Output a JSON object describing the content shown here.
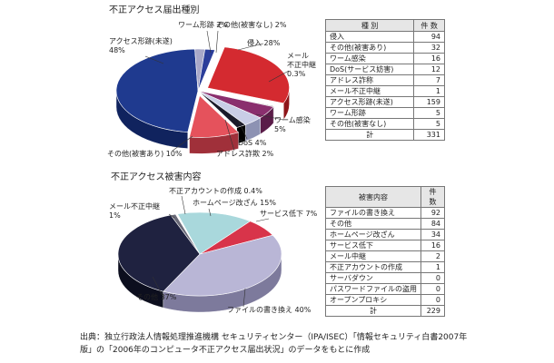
{
  "chart_data": [
    {
      "type": "pie",
      "title": "不正アクセス届出種別",
      "slices": [
        {
          "label": "侵入",
          "display": "侵入 28%",
          "value": 28,
          "color": "#d42a30",
          "side": "#8e1418"
        },
        {
          "label": "メール不正中継",
          "display": "メール|不正中継|0.3%",
          "value": 0.3,
          "color": "#7a7a7a",
          "side": "#444444"
        },
        {
          "label": "ワーム感染",
          "display": "ワーム感染|5%",
          "value": 5,
          "color": "#8a2f6e",
          "side": "#5a1c48"
        },
        {
          "label": "DoS",
          "display": "DoS 4%",
          "value": 4,
          "color": "#c9cde6",
          "side": "#8d92b3"
        },
        {
          "label": "アドレス詐欺",
          "display": "アドレス詐欺 2%",
          "value": 2,
          "color": "#1a1a2a",
          "side": "#000000"
        },
        {
          "label": "その他(被害あり)",
          "display": "その他(被害あり) 10%",
          "value": 10,
          "color": "#e5525c",
          "side": "#a0303a"
        },
        {
          "label": "アクセス形跡(未遂)",
          "display": "アクセス形跡(未遂)|48%",
          "value": 48,
          "color": "#1f3a8f",
          "side": "#10235e"
        },
        {
          "label": "ワーム形跡",
          "display": "ワーム形跡 2%",
          "value": 2,
          "color": "#a8a8c8",
          "side": "#70708f"
        },
        {
          "label": "その他(被害なし)",
          "display": "その他(被害なし) 2%",
          "value": 2,
          "color": "#2b3e9a",
          "side": "#192866"
        }
      ],
      "table": {
        "headers": [
          "種 別",
          "件 数"
        ],
        "rows": [
          [
            "侵入",
            "94"
          ],
          [
            "その他(被害あり)",
            "32"
          ],
          [
            "ワーム感染",
            "16"
          ],
          [
            "DoS(サービス妨害)",
            "12"
          ],
          [
            "アドレス詐称",
            "7"
          ],
          [
            "メール不正中継",
            "1"
          ],
          [
            "アクセス形跡(未遂)",
            "159"
          ],
          [
            "ワーム形跡",
            "5"
          ],
          [
            "その他(被害なし)",
            "5"
          ]
        ],
        "total": [
          "計",
          "331"
        ]
      }
    },
    {
      "type": "pie",
      "title": "不正アクセス被害内容",
      "slices": [
        {
          "label": "サービス低下",
          "display": "サービス低下 7%",
          "value": 7,
          "color": "#d8344a",
          "side": "#8e1a2a"
        },
        {
          "label": "ファイルの書き換え",
          "display": "ファイルの書き換え 40%",
          "value": 40,
          "color": "#b9b6d6",
          "side": "#7d7a9c"
        },
        {
          "label": "その他",
          "display": "その他 37%",
          "value": 37,
          "color": "#1f2240",
          "side": "#0c0e1e"
        },
        {
          "label": "メール不正中継",
          "display": "メール不正中継|1%",
          "value": 1,
          "color": "#6a6a78",
          "side": "#3a3a46"
        },
        {
          "label": "不正アカウントの作成",
          "display": "不正アカウントの作成 0.4%",
          "value": 0.4,
          "color": "#ffffff",
          "side": "#999999"
        },
        {
          "label": "ホームページ改ざん",
          "display": "ホームページ改ざん 15%",
          "value": 15,
          "color": "#a9d8dc",
          "side": "#6d9ea2"
        }
      ],
      "table": {
        "headers": [
          "被害内容",
          "件 数"
        ],
        "rows": [
          [
            "ファイルの書き換え",
            "92"
          ],
          [
            "その他",
            "84"
          ],
          [
            "ホームページ改ざん",
            "34"
          ],
          [
            "サービス低下",
            "16"
          ],
          [
            "メール中継",
            "2"
          ],
          [
            "不正アカウントの作成",
            "1"
          ],
          [
            "サーバダウン",
            "0"
          ],
          [
            "パスワードファイルの盗用",
            "0"
          ],
          [
            "オープンプロキシ",
            "0"
          ]
        ],
        "total": [
          "計",
          "229"
        ]
      }
    }
  ],
  "footer": {
    "line1": "出典：独立行政法人情報処理推進機構 セキュリティセンター（IPA/ISEC）「情報セキュリティ白書2007年",
    "line2": "版」の「2006年のコンピュータ不正アクセス届出状況」のデータをもとに作成"
  }
}
